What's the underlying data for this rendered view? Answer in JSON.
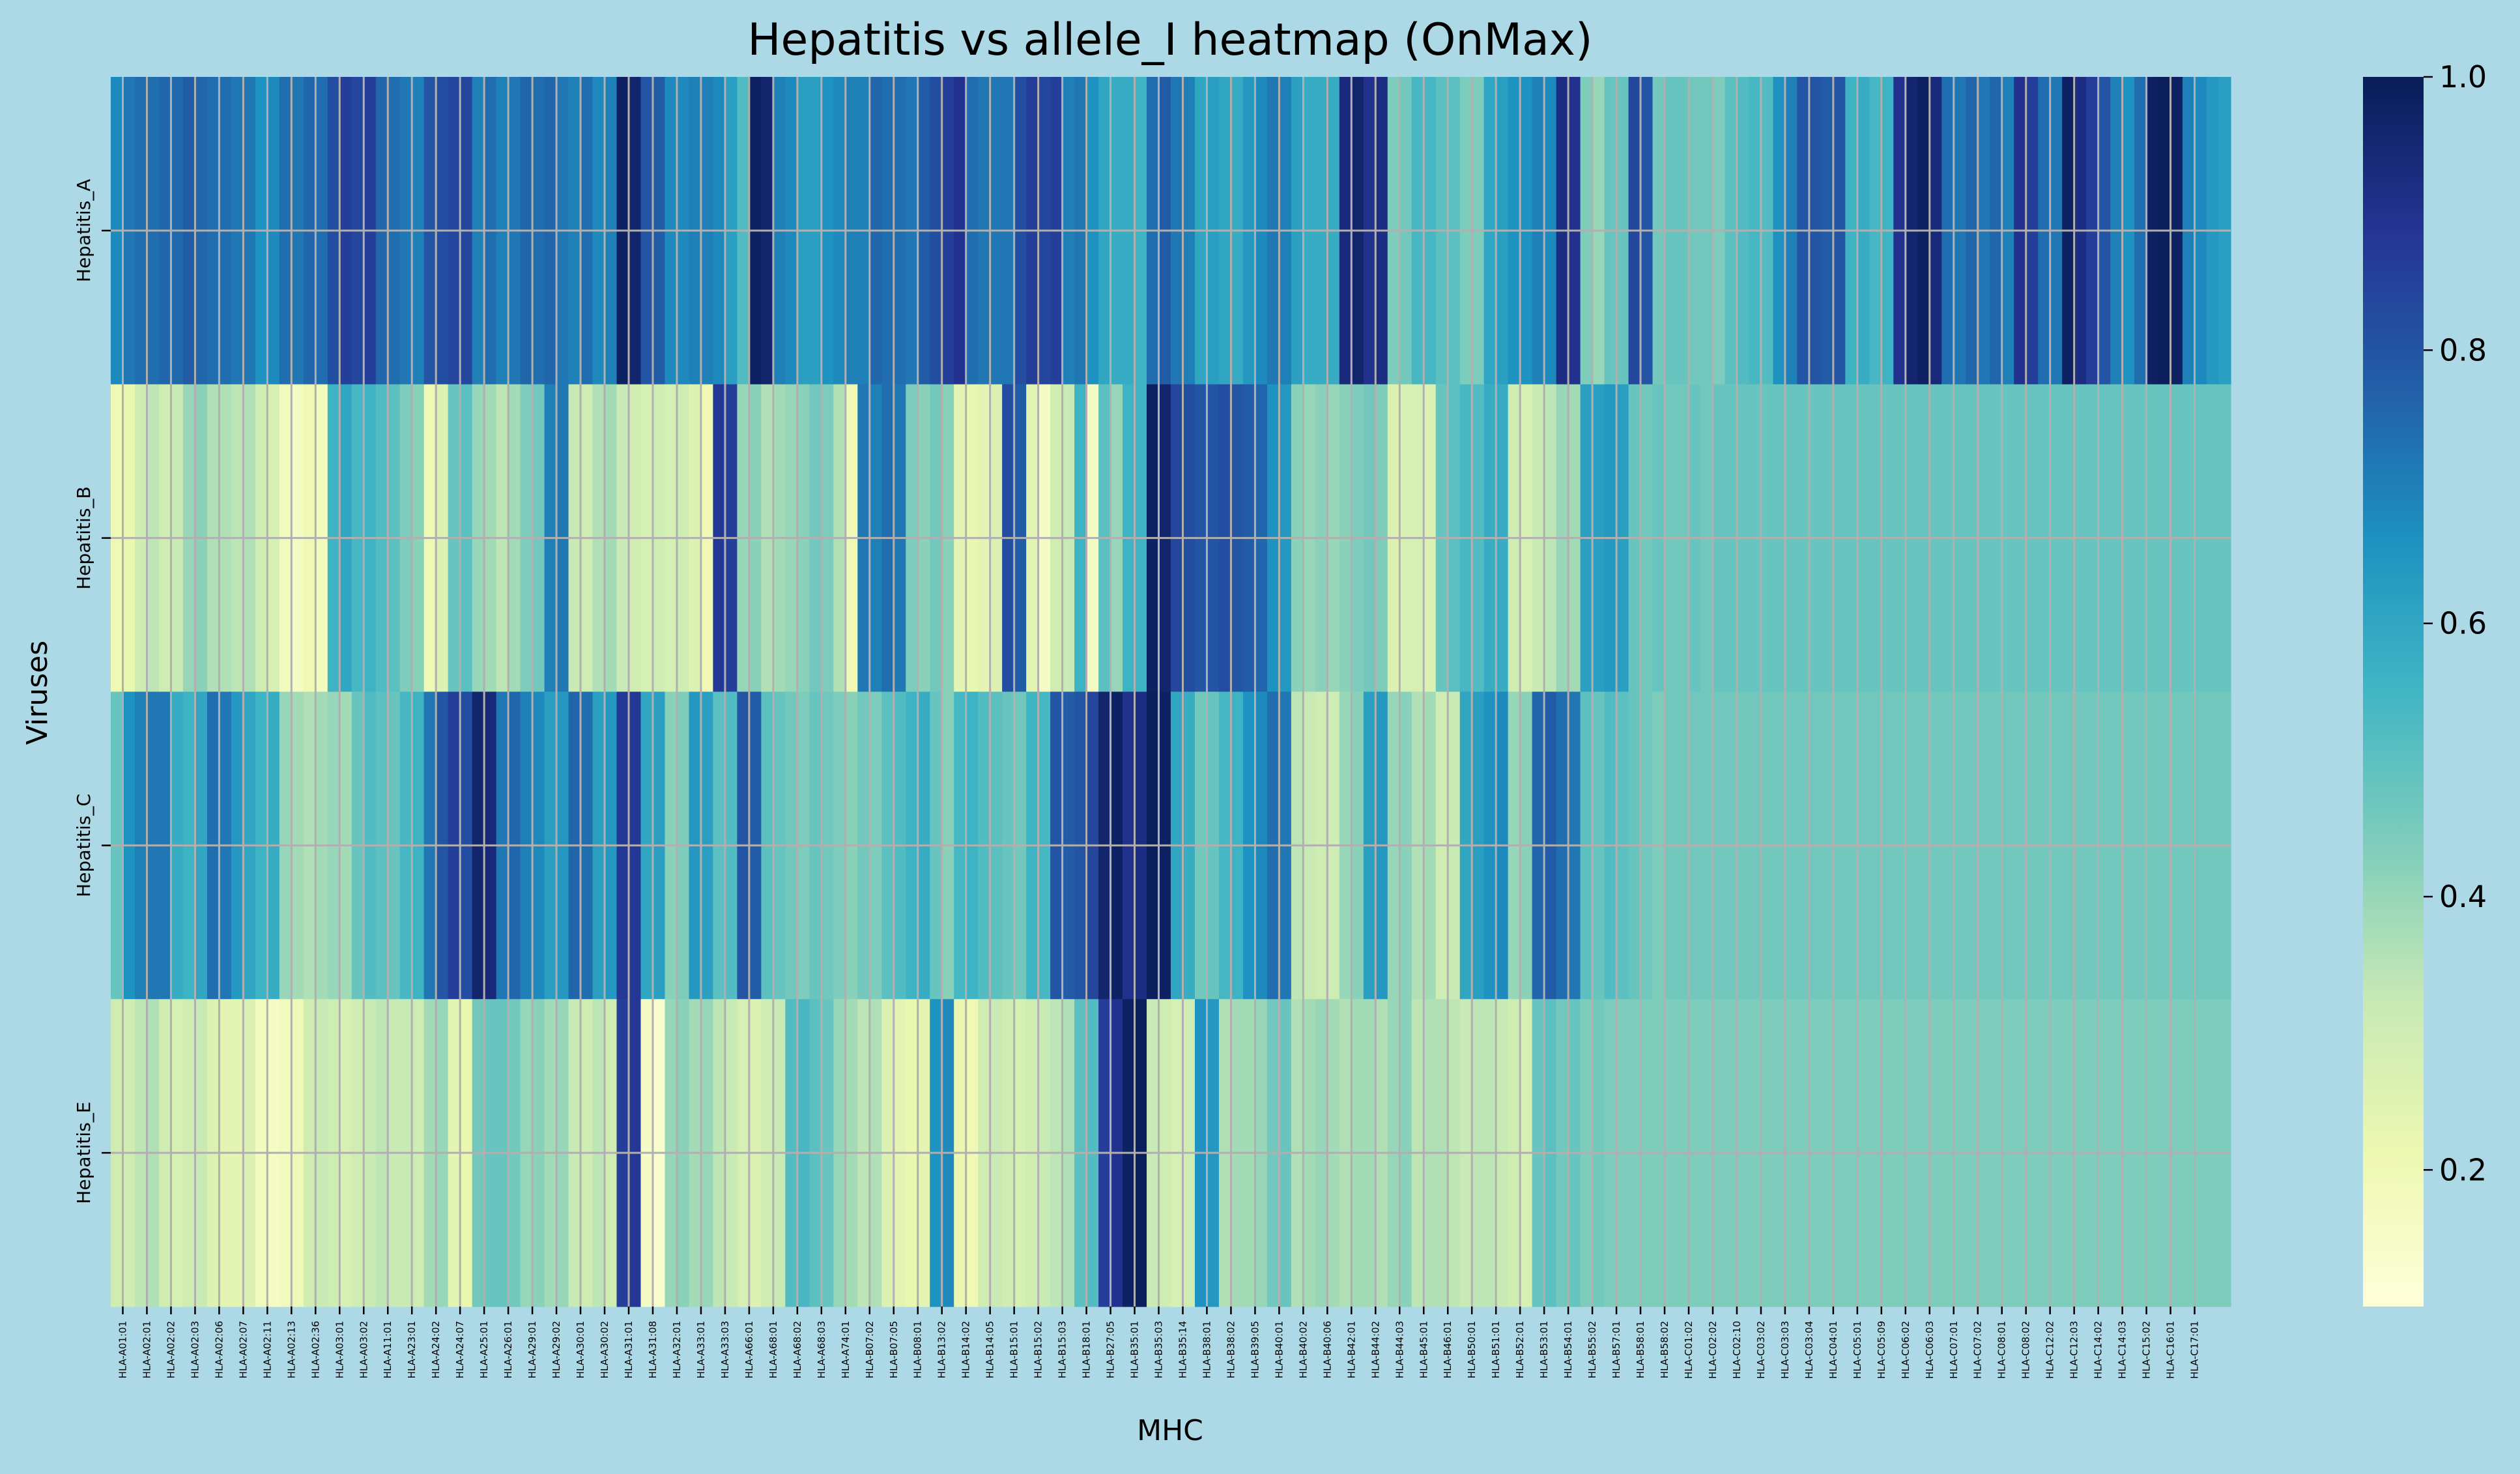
{
  "chart_data": {
    "type": "heatmap",
    "title": "Hepatitis vs allele_I heatmap (OnMax)",
    "xlabel": "MHC",
    "ylabel": "Viruses",
    "colormap": "YlGnBu",
    "colorbar": {
      "min": 0.1,
      "max": 1.0,
      "ticks": [
        "0.2",
        "0.4",
        "0.6",
        "0.8",
        "1.0"
      ],
      "tick_values": [
        0.2,
        0.4,
        0.6,
        0.8,
        1.0
      ]
    },
    "grid": true,
    "grid_color": "#b0b0b0",
    "background": "#add8e6",
    "rows": [
      "Hepatitis_A",
      "Hepatitis_B",
      "Hepatitis_C",
      "Hepatitis_E"
    ],
    "x_tick_labels": [
      "HLA-A01:01",
      "HLA-A02:01",
      "HLA-A02:02",
      "HLA-A02:03",
      "HLA-A02:06",
      "HLA-A02:07",
      "HLA-A02:11",
      "HLA-A02:13",
      "HLA-A02:36",
      "HLA-A03:01",
      "HLA-A03:02",
      "HLA-A11:01",
      "HLA-A23:01",
      "HLA-A24:02",
      "HLA-A24:07",
      "HLA-A25:01",
      "HLA-A26:01",
      "HLA-A29:01",
      "HLA-A29:02",
      "HLA-A30:01",
      "HLA-A30:02",
      "HLA-A31:01",
      "HLA-A31:08",
      "HLA-A32:01",
      "HLA-A33:01",
      "HLA-A33:03",
      "HLA-A66:01",
      "HLA-A68:01",
      "HLA-A68:02",
      "HLA-A68:03",
      "HLA-A74:01",
      "HLA-B07:02",
      "HLA-B07:05",
      "HLA-B08:01",
      "HLA-B13:02",
      "HLA-B14:02",
      "HLA-B14:05",
      "HLA-B15:01",
      "HLA-B15:02",
      "HLA-B15:03",
      "HLA-B18:01",
      "HLA-B27:05",
      "HLA-B35:01",
      "HLA-B35:03",
      "HLA-B35:14",
      "HLA-B38:01",
      "HLA-B38:02",
      "HLA-B39:05",
      "HLA-B40:01",
      "HLA-B40:02",
      "HLA-B40:06",
      "HLA-B42:01",
      "HLA-B44:02",
      "HLA-B44:03",
      "HLA-B45:01",
      "HLA-B46:01",
      "HLA-B50:01",
      "HLA-B51:01",
      "HLA-B52:01",
      "HLA-B53:01",
      "HLA-B54:01",
      "HLA-B55:02",
      "HLA-B57:01",
      "HLA-B58:01",
      "HLA-B58:02",
      "HLA-C01:02",
      "HLA-C02:02",
      "HLA-C02:10",
      "HLA-C03:02",
      "HLA-C03:03",
      "HLA-C03:04",
      "HLA-C04:01",
      "HLA-C05:01",
      "HLA-C05:09",
      "HLA-C06:02",
      "HLA-C06:03",
      "HLA-C07:01",
      "HLA-C07:02",
      "HLA-C08:01",
      "HLA-C08:02",
      "HLA-C12:02",
      "HLA-C12:03",
      "HLA-C14:02",
      "HLA-C14:03",
      "HLA-C15:02",
      "HLA-C16:01",
      "HLA-C17:01"
    ],
    "columns_per_tick": 2,
    "values": [
      [
        0.68,
        0.72,
        0.74,
        0.74,
        0.76,
        0.75,
        0.78,
        0.76,
        0.74,
        0.74,
        0.72,
        0.72,
        0.66,
        0.68,
        0.74,
        0.72,
        0.76,
        0.74,
        0.82,
        0.86,
        0.84,
        0.86,
        0.76,
        0.74,
        0.72,
        0.7,
        0.8,
        0.82,
        0.84,
        0.84,
        0.7,
        0.74,
        0.7,
        0.72,
        0.76,
        0.74,
        0.76,
        0.72,
        0.7,
        0.74,
        0.68,
        0.7,
        0.98,
        0.96,
        0.8,
        0.78,
        0.68,
        0.68,
        0.7,
        0.7,
        0.68,
        0.62,
        0.52,
        0.98,
        0.96,
        0.7,
        0.68,
        0.62,
        0.62,
        0.66,
        0.68,
        0.7,
        0.7,
        0.76,
        0.74,
        0.74,
        0.72,
        0.78,
        0.82,
        0.86,
        0.9,
        0.74,
        0.72,
        0.72,
        0.72,
        0.82,
        0.86,
        0.84,
        0.86,
        0.7,
        0.72,
        0.66,
        0.6,
        0.58,
        0.58,
        0.56,
        0.74,
        0.78,
        0.72,
        0.7,
        0.6,
        0.62,
        0.6,
        0.58,
        0.64,
        0.68,
        0.72,
        0.7,
        0.62,
        0.58,
        0.58,
        0.58,
        0.94,
        0.96,
        0.9,
        0.92,
        0.44,
        0.46,
        0.54,
        0.54,
        0.5,
        0.5,
        0.44,
        0.44,
        0.6,
        0.62,
        0.66,
        0.66,
        0.7,
        0.68,
        0.92,
        0.9,
        0.44,
        0.4,
        0.48,
        0.48,
        0.84,
        0.8,
        0.46,
        0.48,
        0.48,
        0.46,
        0.46,
        0.44,
        0.5,
        0.52,
        0.54,
        0.52,
        0.66,
        0.7,
        0.8,
        0.8,
        0.78,
        0.8,
        0.56,
        0.58,
        0.54,
        0.56,
        0.9,
        0.96,
        0.98,
        0.94,
        0.74,
        0.72,
        0.76,
        0.72,
        0.76,
        0.7,
        0.9,
        0.86,
        0.74,
        0.72,
        0.98,
        0.92,
        0.86,
        0.8,
        0.7,
        0.66,
        0.74,
        0.98,
        0.99,
        0.98,
        0.7,
        0.68,
        0.64,
        0.62
      ],
      [
        0.2,
        0.22,
        0.3,
        0.34,
        0.3,
        0.32,
        0.4,
        0.42,
        0.36,
        0.36,
        0.34,
        0.36,
        0.3,
        0.28,
        0.18,
        0.16,
        0.2,
        0.18,
        0.56,
        0.6,
        0.54,
        0.56,
        0.52,
        0.5,
        0.44,
        0.42,
        0.2,
        0.26,
        0.48,
        0.5,
        0.4,
        0.38,
        0.34,
        0.38,
        0.44,
        0.46,
        0.7,
        0.72,
        0.32,
        0.3,
        0.36,
        0.38,
        0.32,
        0.3,
        0.28,
        0.3,
        0.28,
        0.3,
        0.26,
        0.2,
        0.88,
        0.86,
        0.4,
        0.42,
        0.36,
        0.38,
        0.4,
        0.42,
        0.46,
        0.44,
        0.36,
        0.2,
        0.72,
        0.7,
        0.74,
        0.72,
        0.44,
        0.42,
        0.46,
        0.42,
        0.24,
        0.22,
        0.24,
        0.26,
        0.82,
        0.78,
        0.24,
        0.16,
        0.3,
        0.32,
        0.56,
        0.16,
        0.5,
        0.4,
        0.56,
        0.56,
        0.98,
        0.96,
        0.84,
        0.82,
        0.8,
        0.8,
        0.82,
        0.8,
        0.78,
        0.76,
        0.66,
        0.64,
        0.42,
        0.4,
        0.42,
        0.4,
        0.42,
        0.44,
        0.46,
        0.44,
        0.26,
        0.28,
        0.28,
        0.26,
        0.48,
        0.5,
        0.54,
        0.52,
        0.58,
        0.58,
        0.3,
        0.28,
        0.32,
        0.34,
        0.4,
        0.38,
        0.62,
        0.62,
        0.64,
        0.62,
        0.48,
        0.46,
        0.48,
        0.46,
        0.46,
        0.48,
        0.46,
        0.48,
        0.48,
        0.48,
        0.48,
        0.48,
        0.48,
        0.48,
        0.48,
        0.48,
        0.48,
        0.48,
        0.48,
        0.48,
        0.48,
        0.48,
        0.48,
        0.48,
        0.48,
        0.48,
        0.48,
        0.48,
        0.48,
        0.48,
        0.48,
        0.48,
        0.48,
        0.48,
        0.48,
        0.48,
        0.48,
        0.48,
        0.48,
        0.48,
        0.48,
        0.48,
        0.48,
        0.48,
        0.48,
        0.48,
        0.48,
        0.48,
        0.48,
        0.48,
        0.48,
        0.48,
        0.48,
        0.48
      ],
      [
        0.48,
        0.66,
        0.7,
        0.72,
        0.72,
        0.58,
        0.56,
        0.6,
        0.74,
        0.72,
        0.64,
        0.6,
        0.56,
        0.58,
        0.4,
        0.38,
        0.36,
        0.38,
        0.4,
        0.38,
        0.48,
        0.52,
        0.5,
        0.48,
        0.54,
        0.56,
        0.72,
        0.8,
        0.86,
        0.82,
        0.96,
        0.94,
        0.72,
        0.76,
        0.7,
        0.68,
        0.62,
        0.64,
        0.76,
        0.74,
        0.62,
        0.64,
        0.88,
        0.88,
        0.6,
        0.62,
        0.42,
        0.44,
        0.64,
        0.62,
        0.5,
        0.52,
        0.8,
        0.78,
        0.5,
        0.48,
        0.46,
        0.44,
        0.48,
        0.46,
        0.44,
        0.42,
        0.46,
        0.44,
        0.5,
        0.52,
        0.56,
        0.58,
        0.48,
        0.42,
        0.54,
        0.56,
        0.52,
        0.5,
        0.48,
        0.46,
        0.56,
        0.54,
        0.8,
        0.78,
        0.8,
        0.84,
        0.96,
        0.98,
        0.9,
        0.92,
        0.99,
        0.98,
        0.6,
        0.58,
        0.46,
        0.48,
        0.54,
        0.56,
        0.66,
        0.68,
        0.74,
        0.72,
        0.34,
        0.32,
        0.3,
        0.3,
        0.4,
        0.42,
        0.62,
        0.64,
        0.4,
        0.42,
        0.36,
        0.38,
        0.3,
        0.32,
        0.6,
        0.62,
        0.66,
        0.68,
        0.4,
        0.42,
        0.76,
        0.78,
        0.74,
        0.72,
        0.5,
        0.48,
        0.52,
        0.5,
        0.48,
        0.46,
        0.44,
        0.46,
        0.46,
        0.46,
        0.46,
        0.46,
        0.46,
        0.46,
        0.46,
        0.46,
        0.46,
        0.46,
        0.46,
        0.46,
        0.46,
        0.46,
        0.46,
        0.46,
        0.46,
        0.46,
        0.46,
        0.46,
        0.46,
        0.46,
        0.46,
        0.46,
        0.46,
        0.46,
        0.46,
        0.46,
        0.46,
        0.46,
        0.46,
        0.46,
        0.46,
        0.46,
        0.46,
        0.46,
        0.46,
        0.46,
        0.46,
        0.46,
        0.46,
        0.46,
        0.46,
        0.46,
        0.46,
        0.46
      ],
      [
        0.3,
        0.3,
        0.34,
        0.36,
        0.3,
        0.28,
        0.3,
        0.32,
        0.26,
        0.24,
        0.24,
        0.26,
        0.18,
        0.16,
        0.18,
        0.2,
        0.3,
        0.32,
        0.3,
        0.28,
        0.3,
        0.32,
        0.34,
        0.32,
        0.32,
        0.3,
        0.38,
        0.4,
        0.24,
        0.22,
        0.46,
        0.48,
        0.48,
        0.46,
        0.4,
        0.42,
        0.38,
        0.4,
        0.32,
        0.3,
        0.34,
        0.3,
        0.86,
        0.88,
        0.16,
        0.14,
        0.4,
        0.42,
        0.38,
        0.4,
        0.34,
        0.32,
        0.28,
        0.26,
        0.3,
        0.32,
        0.52,
        0.54,
        0.5,
        0.48,
        0.4,
        0.38,
        0.34,
        0.36,
        0.26,
        0.24,
        0.22,
        0.24,
        0.66,
        0.68,
        0.22,
        0.2,
        0.3,
        0.32,
        0.3,
        0.28,
        0.3,
        0.32,
        0.34,
        0.36,
        0.5,
        0.52,
        0.86,
        0.9,
        0.98,
        0.99,
        0.32,
        0.3,
        0.28,
        0.3,
        0.66,
        0.64,
        0.36,
        0.38,
        0.38,
        0.4,
        0.46,
        0.48,
        0.36,
        0.38,
        0.4,
        0.38,
        0.36,
        0.38,
        0.38,
        0.36,
        0.4,
        0.42,
        0.34,
        0.36,
        0.36,
        0.34,
        0.32,
        0.34,
        0.34,
        0.32,
        0.3,
        0.28,
        0.48,
        0.5,
        0.46,
        0.48,
        0.44,
        0.46,
        0.44,
        0.44,
        0.44,
        0.44,
        0.44,
        0.44,
        0.44,
        0.44,
        0.44,
        0.44,
        0.44,
        0.44,
        0.44,
        0.44,
        0.44,
        0.44,
        0.44,
        0.44,
        0.44,
        0.44,
        0.44,
        0.44,
        0.44,
        0.44,
        0.44,
        0.44,
        0.44,
        0.44,
        0.44,
        0.44,
        0.44,
        0.44,
        0.44,
        0.44,
        0.44,
        0.44,
        0.44,
        0.44,
        0.44,
        0.44,
        0.44,
        0.44,
        0.44,
        0.44,
        0.44,
        0.44,
        0.44,
        0.44,
        0.44,
        0.44,
        0.44,
        0.44
      ]
    ]
  }
}
